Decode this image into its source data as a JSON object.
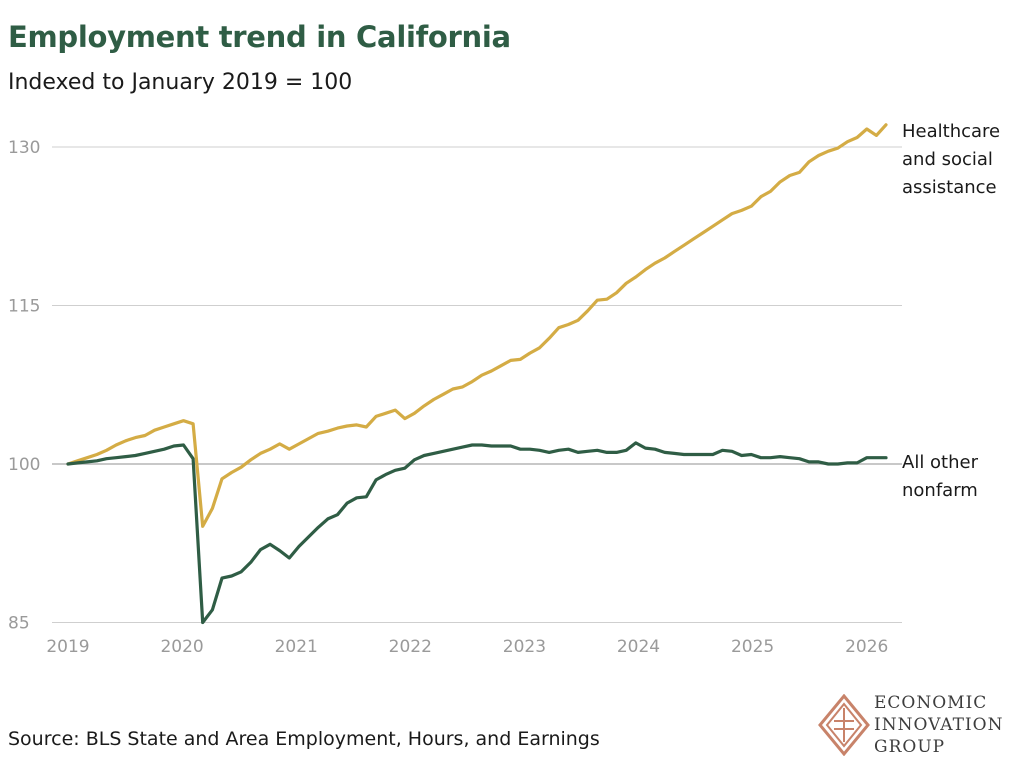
{
  "chart_data": {
    "type": "line",
    "title": "Employment trend in California",
    "subtitle": "Indexed to January 2019 = 100",
    "source": "Source: BLS State and Area Employment, Hours, and Earnings",
    "x_ticks": [
      "2019",
      "2020",
      "2021",
      "2022",
      "2023",
      "2024",
      "2025",
      "2026"
    ],
    "y_ticks": [
      85,
      100,
      115,
      130
    ],
    "ylim": [
      85,
      132
    ],
    "grid": "horizontal",
    "legend": "direct labels at line ends",
    "series": [
      {
        "name": "Healthcare and social assistance",
        "label_lines": [
          "Healthcare",
          "and social",
          "assistance"
        ],
        "color": "#d4ac45",
        "values": [
          100.0,
          100.3,
          100.6,
          100.9,
          101.3,
          101.8,
          102.2,
          102.5,
          102.7,
          103.2,
          103.5,
          103.8,
          104.1,
          103.8,
          94.1,
          95.8,
          98.6,
          99.2,
          99.7,
          100.4,
          101.0,
          101.4,
          101.9,
          101.4,
          101.9,
          102.4,
          102.9,
          103.1,
          103.4,
          103.6,
          103.7,
          103.5,
          104.5,
          104.8,
          105.1,
          104.3,
          104.8,
          105.5,
          106.1,
          106.6,
          107.1,
          107.3,
          107.8,
          108.4,
          108.8,
          109.3,
          109.8,
          109.9,
          110.5,
          111.0,
          111.9,
          112.9,
          113.2,
          113.6,
          114.5,
          115.5,
          115.6,
          116.2,
          117.1,
          117.7,
          118.4,
          119.0,
          119.5,
          120.1,
          120.7,
          121.3,
          121.9,
          122.5,
          123.1,
          123.7,
          124.0,
          124.4,
          125.3,
          125.8,
          126.7,
          127.3,
          127.6,
          128.6,
          129.2,
          129.6,
          129.9,
          130.5,
          130.9,
          131.7,
          131.1,
          132.1
        ]
      },
      {
        "name": "All other nonfarm",
        "label_lines": [
          "All other",
          "nonfarm"
        ],
        "color": "#2f5d45",
        "values": [
          100.0,
          100.1,
          100.2,
          100.3,
          100.5,
          100.6,
          100.7,
          100.8,
          101.0,
          101.2,
          101.4,
          101.7,
          101.8,
          100.5,
          85.0,
          86.2,
          89.2,
          89.4,
          89.8,
          90.7,
          91.9,
          92.4,
          91.8,
          91.1,
          92.2,
          93.1,
          94.0,
          94.8,
          95.2,
          96.3,
          96.8,
          96.9,
          98.5,
          99.0,
          99.4,
          99.6,
          100.4,
          100.8,
          101.0,
          101.2,
          101.4,
          101.6,
          101.8,
          101.8,
          101.7,
          101.7,
          101.7,
          101.4,
          101.4,
          101.3,
          101.1,
          101.3,
          101.4,
          101.1,
          101.2,
          101.3,
          101.1,
          101.1,
          101.3,
          102.0,
          101.5,
          101.4,
          101.1,
          101.0,
          100.9,
          100.9,
          100.9,
          100.9,
          101.3,
          101.2,
          100.8,
          100.9,
          100.6,
          100.6,
          100.7,
          100.6,
          100.5,
          100.2,
          100.2,
          100.0,
          100.0,
          100.1,
          100.1,
          100.6,
          100.6,
          100.6
        ]
      }
    ]
  },
  "logo": {
    "icon": "eig-diamond-logo-icon",
    "color": "#c8836a",
    "lines": [
      "ECONOMIC",
      "INNOVATION",
      "GROUP"
    ]
  }
}
